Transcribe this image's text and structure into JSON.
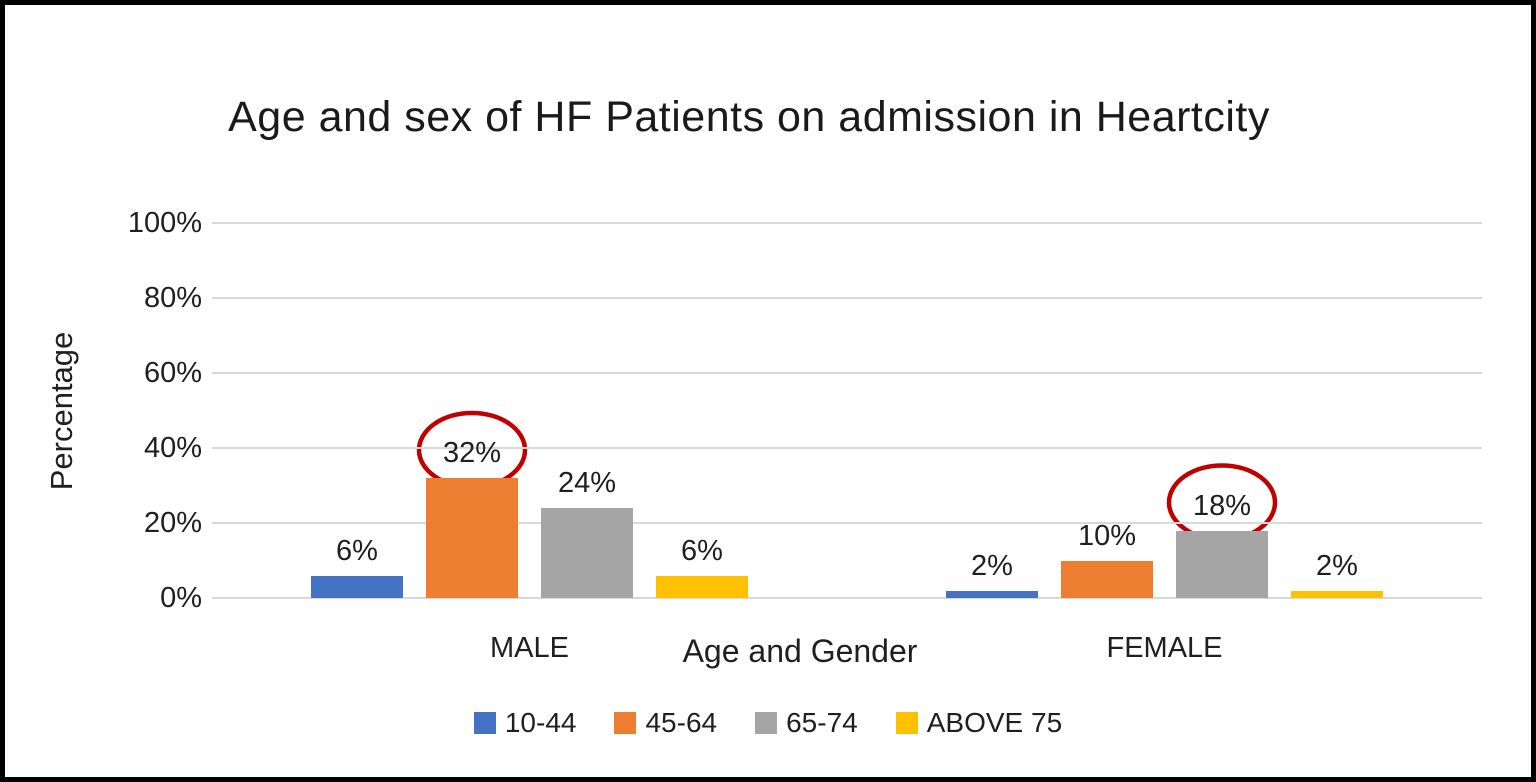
{
  "chart_data": {
    "type": "bar",
    "title": "Age and sex of HF Patients on admission in Heartcity",
    "xlabel": "Age and Gender",
    "ylabel": "Percentage",
    "categories": [
      "MALE",
      "FEMALE"
    ],
    "series": [
      {
        "name": "10-44",
        "color": "#4472C4",
        "values": [
          6,
          2
        ]
      },
      {
        "name": "45-64",
        "color": "#ED7D31",
        "values": [
          32,
          10
        ]
      },
      {
        "name": "65-74",
        "color": "#A5A5A5",
        "values": [
          24,
          18
        ]
      },
      {
        "name": "ABOVE 75",
        "color": "#FFC000",
        "values": [
          6,
          2
        ]
      }
    ],
    "data_labels": [
      [
        "6%",
        "32%",
        "24%",
        "6%"
      ],
      [
        "2%",
        "10%",
        "18%",
        "2%"
      ]
    ],
    "yticks": [
      {
        "label": "0%",
        "value": 0
      },
      {
        "label": "20%",
        "value": 20
      },
      {
        "label": "40%",
        "value": 40
      },
      {
        "label": "60%",
        "value": 60
      },
      {
        "label": "80%",
        "value": 80
      },
      {
        "label": "100%",
        "value": 100
      }
    ],
    "ylim": [
      0,
      100
    ],
    "grid": true,
    "legend_position": "bottom",
    "annotations": [
      {
        "type": "ellipse",
        "color": "#C00000",
        "category": "MALE",
        "series": "45-64",
        "label": "32%"
      },
      {
        "type": "ellipse",
        "color": "#C00000",
        "category": "FEMALE",
        "series": "65-74",
        "label": "18%"
      }
    ],
    "colors": {
      "gridline": "#d9d9d9",
      "text": "#1f1f1f",
      "annotation_red": "#C00000"
    }
  }
}
